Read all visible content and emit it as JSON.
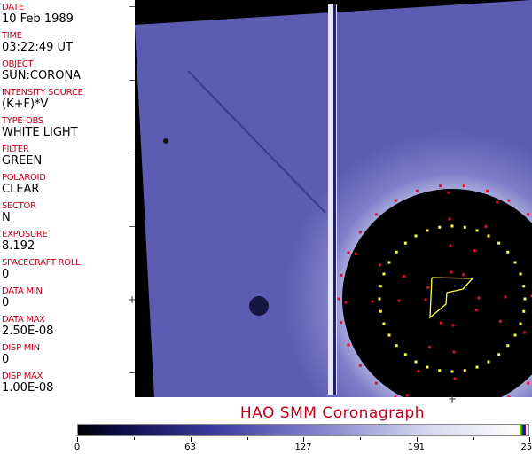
{
  "fields": [
    {
      "label": "DATE",
      "value": "10 Feb 1989"
    },
    {
      "label": "TIME",
      "value": "03:22:49 UT"
    },
    {
      "label": "OBJECT",
      "value": "SUN:CORONA"
    },
    {
      "label": "INTENSITY SOURCE",
      "value": "(K+F)*V"
    },
    {
      "label": "TYPE-OBS",
      "value": "WHITE LIGHT"
    },
    {
      "label": "FILTER",
      "value": "GREEN"
    },
    {
      "label": "POLAROID",
      "value": "CLEAR"
    },
    {
      "label": "SECTOR",
      "value": "N"
    },
    {
      "label": "EXPOSURE",
      "value": "8.192"
    },
    {
      "label": "SPACECRAFT ROLL",
      "value": "0"
    },
    {
      "label": "DATA MIN",
      "value": "0"
    },
    {
      "label": "DATA MAX",
      "value": "2.50E-08"
    },
    {
      "label": "DISP MIN",
      "value": "0"
    },
    {
      "label": "DISP MAX",
      "value": "1.00E-08"
    }
  ],
  "title": "HAO  SMM Coronagraph",
  "colorbar": {
    "ticks": [
      "0",
      "63",
      "127",
      "191",
      "255"
    ],
    "colors": {
      "low": "#000000",
      "mid": "#5a5ab8",
      "high": "#fafafa"
    }
  },
  "overlay_colors": {
    "grid_yellow": "#ffff40",
    "grid_red": "#e0102a"
  }
}
